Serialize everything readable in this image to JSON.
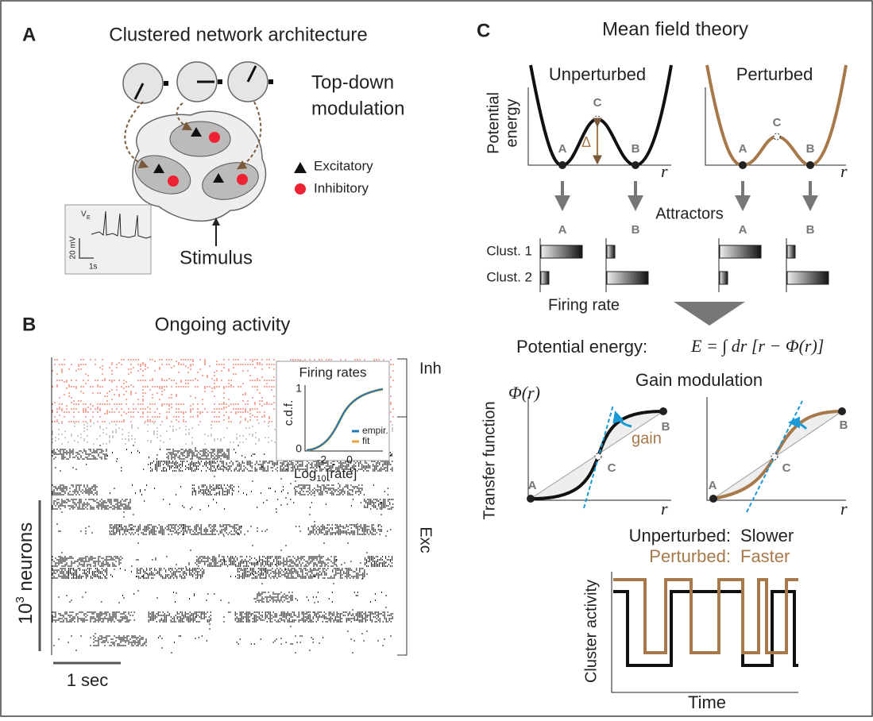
{
  "panel_a": {
    "letter": "A",
    "title": "Clustered network architecture",
    "modulation": [
      "Top-down",
      "modulation"
    ],
    "legend": [
      "Excitatory",
      "Inhibitory"
    ],
    "inset": {
      "voltage": "V",
      "voltage_sub": "E",
      "scale_y": "20 mV",
      "scale_x": "1s"
    },
    "stimulus": "Stimulus"
  },
  "panel_b": {
    "letter": "B",
    "title": "Ongoing activity",
    "inset": {
      "title": "Firing rates",
      "ylabel": "c.d.f.",
      "yticks": [
        "1",
        "0"
      ],
      "xticks": [
        "-2",
        "0"
      ],
      "xlabel_prefix": "Log",
      "xlabel_sub": "10",
      "xlabel_suffix": "[rate]",
      "legend": [
        "empir.",
        "fit"
      ]
    },
    "populations": [
      "Inh",
      "Exc"
    ],
    "scale_neurons": {
      "base": "10",
      "exp": "3",
      "text": " neurons"
    },
    "scale_time": "1 sec"
  },
  "panel_c": {
    "letter": "C",
    "title": "Mean field theory",
    "potential": {
      "ylabel": [
        "Potential",
        "energy"
      ],
      "panels": [
        {
          "title": "Unperturbed",
          "points": [
            "A",
            "B",
            "C"
          ],
          "barrier": "Δ",
          "xlabel": "r"
        },
        {
          "title": "Perturbed",
          "points": [
            "A",
            "B",
            "C"
          ],
          "xlabel": "r"
        }
      ]
    },
    "attractors": {
      "label": "Attractors",
      "states": [
        "A",
        "B",
        "A",
        "B"
      ],
      "rows": [
        "Clust. 1",
        "Clust. 2"
      ],
      "xlabel": "Firing rate"
    },
    "energy_eq": {
      "label": "Potential energy:",
      "formula": "E = ∫ dr [r − Φ(r)]"
    },
    "gain": {
      "title": "Gain modulation",
      "ylabel_fn": "Φ(r)",
      "ylabel": "Transfer function",
      "panels": [
        {
          "points": [
            "A",
            "B",
            "C"
          ],
          "annotation": "gain",
          "xlabel": "r"
        },
        {
          "points": [
            "A",
            "B",
            "C"
          ],
          "xlabel": "r"
        }
      ]
    },
    "activity": {
      "legend": [
        {
          "name": "Unperturbed:",
          "speed": "Slower"
        },
        {
          "name": "Perturbed:",
          "speed": "Faster"
        }
      ],
      "ylabel": "Cluster activity",
      "xlabel": "Time"
    }
  }
}
